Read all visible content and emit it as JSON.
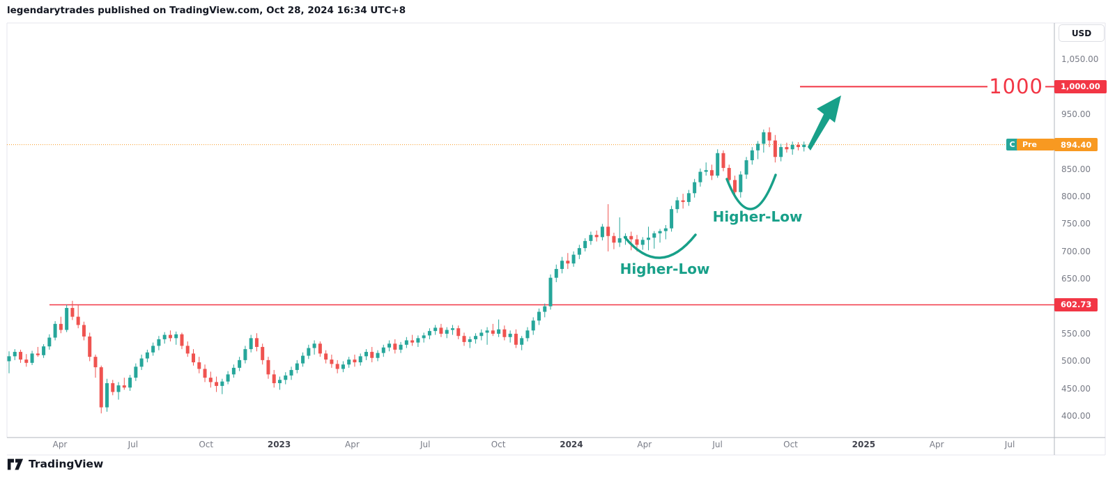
{
  "header": {
    "attribution": "legendarytrades published on TradingView.com, Oct 28, 2024 16:34 UTC+8"
  },
  "colors": {
    "up": "#26a69a",
    "down": "#ef5350",
    "annotation_teal": "#18a089",
    "line_red": "#f23645",
    "last_price_orange": "#f89921",
    "axis_text": "#787b86",
    "frame_light": "#e4e6ec",
    "separator": "#b2b5be",
    "dark_text": "#131722"
  },
  "price_axis": {
    "currency_button": "USD",
    "ticks": [
      {
        "label": "1,050.00",
        "value": 1050
      },
      {
        "label": "950.00",
        "value": 950
      },
      {
        "label": "850.00",
        "value": 850
      },
      {
        "label": "800.00",
        "value": 800
      },
      {
        "label": "750.00",
        "value": 750
      },
      {
        "label": "700.00",
        "value": 700
      },
      {
        "label": "650.00",
        "value": 650
      },
      {
        "label": "550.00",
        "value": 550
      },
      {
        "label": "500.00",
        "value": 500
      },
      {
        "label": "450.00",
        "value": 450
      },
      {
        "label": "400.00",
        "value": 400
      }
    ],
    "badges": [
      {
        "label": "1,000.00",
        "value": 1000,
        "color": "#f23645"
      },
      {
        "label": "602.73",
        "value": 602.73,
        "color": "#f23645"
      },
      {
        "label": "894.40",
        "value": 894.4,
        "color": "#f89921"
      }
    ],
    "status_badges": [
      {
        "label": "C",
        "color": "#26a69a"
      },
      {
        "label": "Pre",
        "color": "#f89921"
      }
    ]
  },
  "time_axis": {
    "labels": [
      {
        "text": "Apr",
        "year": false
      },
      {
        "text": "Jul",
        "year": false
      },
      {
        "text": "Oct",
        "year": false
      },
      {
        "text": "2023",
        "year": true
      },
      {
        "text": "Apr",
        "year": false
      },
      {
        "text": "Jul",
        "year": false
      },
      {
        "text": "Oct",
        "year": false
      },
      {
        "text": "2024",
        "year": true
      },
      {
        "text": "Apr",
        "year": false
      },
      {
        "text": "Jul",
        "year": false
      },
      {
        "text": "Oct",
        "year": false
      },
      {
        "text": "2025",
        "year": true
      },
      {
        "text": "Apr",
        "year": false
      },
      {
        "text": "Jul",
        "year": false
      }
    ]
  },
  "chart_data": {
    "type": "candlestick",
    "interval": "weekly",
    "currency": "USD",
    "ylim": [
      361,
      1116
    ],
    "last_price": 894.4,
    "up_color": "#26a69a",
    "down_color": "#ef5350",
    "annotations": {
      "target_line": {
        "price": 1000,
        "label": "1000",
        "color": "#f23645"
      },
      "support_line": {
        "price": 602.73,
        "label": "602.73",
        "color": "#f23645"
      },
      "last_price_line": {
        "price": 894.4,
        "label": "894.40",
        "style": "dotted",
        "color": "#f89921"
      },
      "higher_lows": [
        {
          "label": "Higher-Low"
        },
        {
          "label": "Higher-Low"
        }
      ],
      "arrow": {
        "meaning": "projected-move-to-1000",
        "color": "#18a089"
      }
    },
    "candles": [
      [
        500,
        518,
        478,
        509
      ],
      [
        509,
        522,
        502,
        517
      ],
      [
        517,
        521,
        497,
        503
      ],
      [
        503,
        513,
        490,
        497
      ],
      [
        497,
        519,
        493,
        514
      ],
      [
        514,
        526,
        508,
        511
      ],
      [
        511,
        531,
        506,
        527
      ],
      [
        527,
        549,
        521,
        543
      ],
      [
        543,
        573,
        538,
        568
      ],
      [
        568,
        581,
        551,
        557
      ],
      [
        557,
        603,
        553,
        597
      ],
      [
        597,
        610,
        575,
        581
      ],
      [
        581,
        602,
        560,
        566
      ],
      [
        566,
        572,
        538,
        545
      ],
      [
        545,
        552,
        500,
        508
      ],
      [
        508,
        512,
        470,
        489
      ],
      [
        489,
        492,
        405,
        416
      ],
      [
        416,
        468,
        408,
        460
      ],
      [
        460,
        466,
        438,
        444
      ],
      [
        444,
        462,
        430,
        456
      ],
      [
        456,
        470,
        448,
        452
      ],
      [
        452,
        475,
        446,
        470
      ],
      [
        470,
        496,
        464,
        490
      ],
      [
        490,
        512,
        484,
        505
      ],
      [
        505,
        521,
        498,
        516
      ],
      [
        516,
        534,
        510,
        528
      ],
      [
        528,
        546,
        520,
        540
      ],
      [
        540,
        553,
        532,
        548
      ],
      [
        548,
        556,
        536,
        542
      ],
      [
        542,
        554,
        530,
        549
      ],
      [
        549,
        552,
        522,
        528
      ],
      [
        528,
        536,
        508,
        514
      ],
      [
        514,
        522,
        492,
        498
      ],
      [
        498,
        508,
        478,
        486
      ],
      [
        486,
        494,
        462,
        470
      ],
      [
        470,
        481,
        452,
        462
      ],
      [
        462,
        472,
        444,
        455
      ],
      [
        455,
        468,
        440,
        463
      ],
      [
        463,
        482,
        458,
        476
      ],
      [
        476,
        494,
        470,
        488
      ],
      [
        488,
        508,
        482,
        502
      ],
      [
        502,
        528,
        496,
        522
      ],
      [
        522,
        548,
        516,
        542
      ],
      [
        542,
        551,
        518,
        526
      ],
      [
        526,
        532,
        494,
        502
      ],
      [
        502,
        508,
        468,
        476
      ],
      [
        476,
        484,
        452,
        460
      ],
      [
        460,
        472,
        448,
        466
      ],
      [
        466,
        480,
        458,
        474
      ],
      [
        474,
        490,
        466,
        484
      ],
      [
        484,
        502,
        478,
        496
      ],
      [
        496,
        516,
        490,
        510
      ],
      [
        510,
        530,
        504,
        524
      ],
      [
        524,
        538,
        512,
        532
      ],
      [
        532,
        536,
        508,
        514
      ],
      [
        514,
        520,
        496,
        503
      ],
      [
        503,
        512,
        488,
        495
      ],
      [
        495,
        502,
        478,
        486
      ],
      [
        486,
        500,
        480,
        494
      ],
      [
        494,
        508,
        488,
        503
      ],
      [
        503,
        512,
        490,
        498
      ],
      [
        498,
        514,
        492,
        509
      ],
      [
        509,
        522,
        502,
        517
      ],
      [
        517,
        526,
        498,
        506
      ],
      [
        506,
        520,
        500,
        515
      ],
      [
        515,
        530,
        508,
        525
      ],
      [
        525,
        538,
        518,
        532
      ],
      [
        532,
        540,
        514,
        521
      ],
      [
        521,
        535,
        515,
        530
      ],
      [
        530,
        544,
        524,
        538
      ],
      [
        538,
        548,
        528,
        534
      ],
      [
        534,
        547,
        526,
        542
      ],
      [
        542,
        552,
        534,
        547
      ],
      [
        547,
        560,
        540,
        555
      ],
      [
        555,
        566,
        548,
        561
      ],
      [
        561,
        568,
        544,
        550
      ],
      [
        550,
        562,
        542,
        557
      ],
      [
        557,
        566,
        548,
        560
      ],
      [
        560,
        565,
        540,
        546
      ],
      [
        546,
        552,
        528,
        535
      ],
      [
        535,
        545,
        524,
        540
      ],
      [
        540,
        551,
        532,
        546
      ],
      [
        546,
        558,
        538,
        552
      ],
      [
        552,
        562,
        530,
        556
      ],
      [
        556,
        568,
        546,
        550
      ],
      [
        550,
        576,
        544,
        558
      ],
      [
        558,
        565,
        538,
        544
      ],
      [
        544,
        556,
        534,
        550
      ],
      [
        550,
        558,
        524,
        530
      ],
      [
        530,
        546,
        520,
        542
      ],
      [
        542,
        562,
        536,
        556
      ],
      [
        556,
        580,
        548,
        574
      ],
      [
        574,
        596,
        566,
        590
      ],
      [
        590,
        605,
        580,
        600
      ],
      [
        600,
        658,
        594,
        652
      ],
      [
        652,
        676,
        644,
        668
      ],
      [
        668,
        690,
        660,
        683
      ],
      [
        683,
        697,
        668,
        678
      ],
      [
        678,
        700,
        672,
        694
      ],
      [
        694,
        712,
        686,
        706
      ],
      [
        706,
        724,
        700,
        719
      ],
      [
        719,
        736,
        712,
        730
      ],
      [
        730,
        738,
        718,
        726
      ],
      [
        726,
        750,
        720,
        745
      ],
      [
        745,
        786,
        700,
        728
      ],
      [
        728,
        734,
        704,
        716
      ],
      [
        716,
        762,
        708,
        724
      ],
      [
        724,
        733,
        712,
        728
      ],
      [
        728,
        736,
        702,
        722
      ],
      [
        722,
        730,
        700,
        712
      ],
      [
        712,
        726,
        703,
        721
      ],
      [
        721,
        745,
        702,
        725
      ],
      [
        725,
        737,
        705,
        733
      ],
      [
        733,
        741,
        716,
        737
      ],
      [
        737,
        748,
        722,
        742
      ],
      [
        742,
        783,
        736,
        777
      ],
      [
        777,
        799,
        770,
        793
      ],
      [
        793,
        805,
        778,
        790
      ],
      [
        790,
        812,
        783,
        806
      ],
      [
        806,
        832,
        798,
        826
      ],
      [
        826,
        851,
        818,
        845
      ],
      [
        845,
        862,
        838,
        848
      ],
      [
        848,
        858,
        830,
        838
      ],
      [
        838,
        886,
        834,
        879
      ],
      [
        879,
        884,
        846,
        852
      ],
      [
        852,
        858,
        820,
        830
      ],
      [
        830,
        838,
        797,
        808
      ],
      [
        808,
        846,
        798,
        840
      ],
      [
        840,
        872,
        832,
        866
      ],
      [
        866,
        890,
        858,
        884
      ],
      [
        884,
        901,
        868,
        896
      ],
      [
        896,
        922,
        880,
        917
      ],
      [
        917,
        926,
        890,
        902
      ],
      [
        902,
        912,
        862,
        872
      ],
      [
        872,
        896,
        864,
        890
      ],
      [
        890,
        898,
        880,
        886
      ],
      [
        886,
        900,
        876,
        894
      ],
      [
        894,
        899,
        884,
        890
      ],
      [
        890,
        900,
        882,
        894.4
      ]
    ]
  },
  "footer": {
    "logo_text": "TradingView"
  }
}
